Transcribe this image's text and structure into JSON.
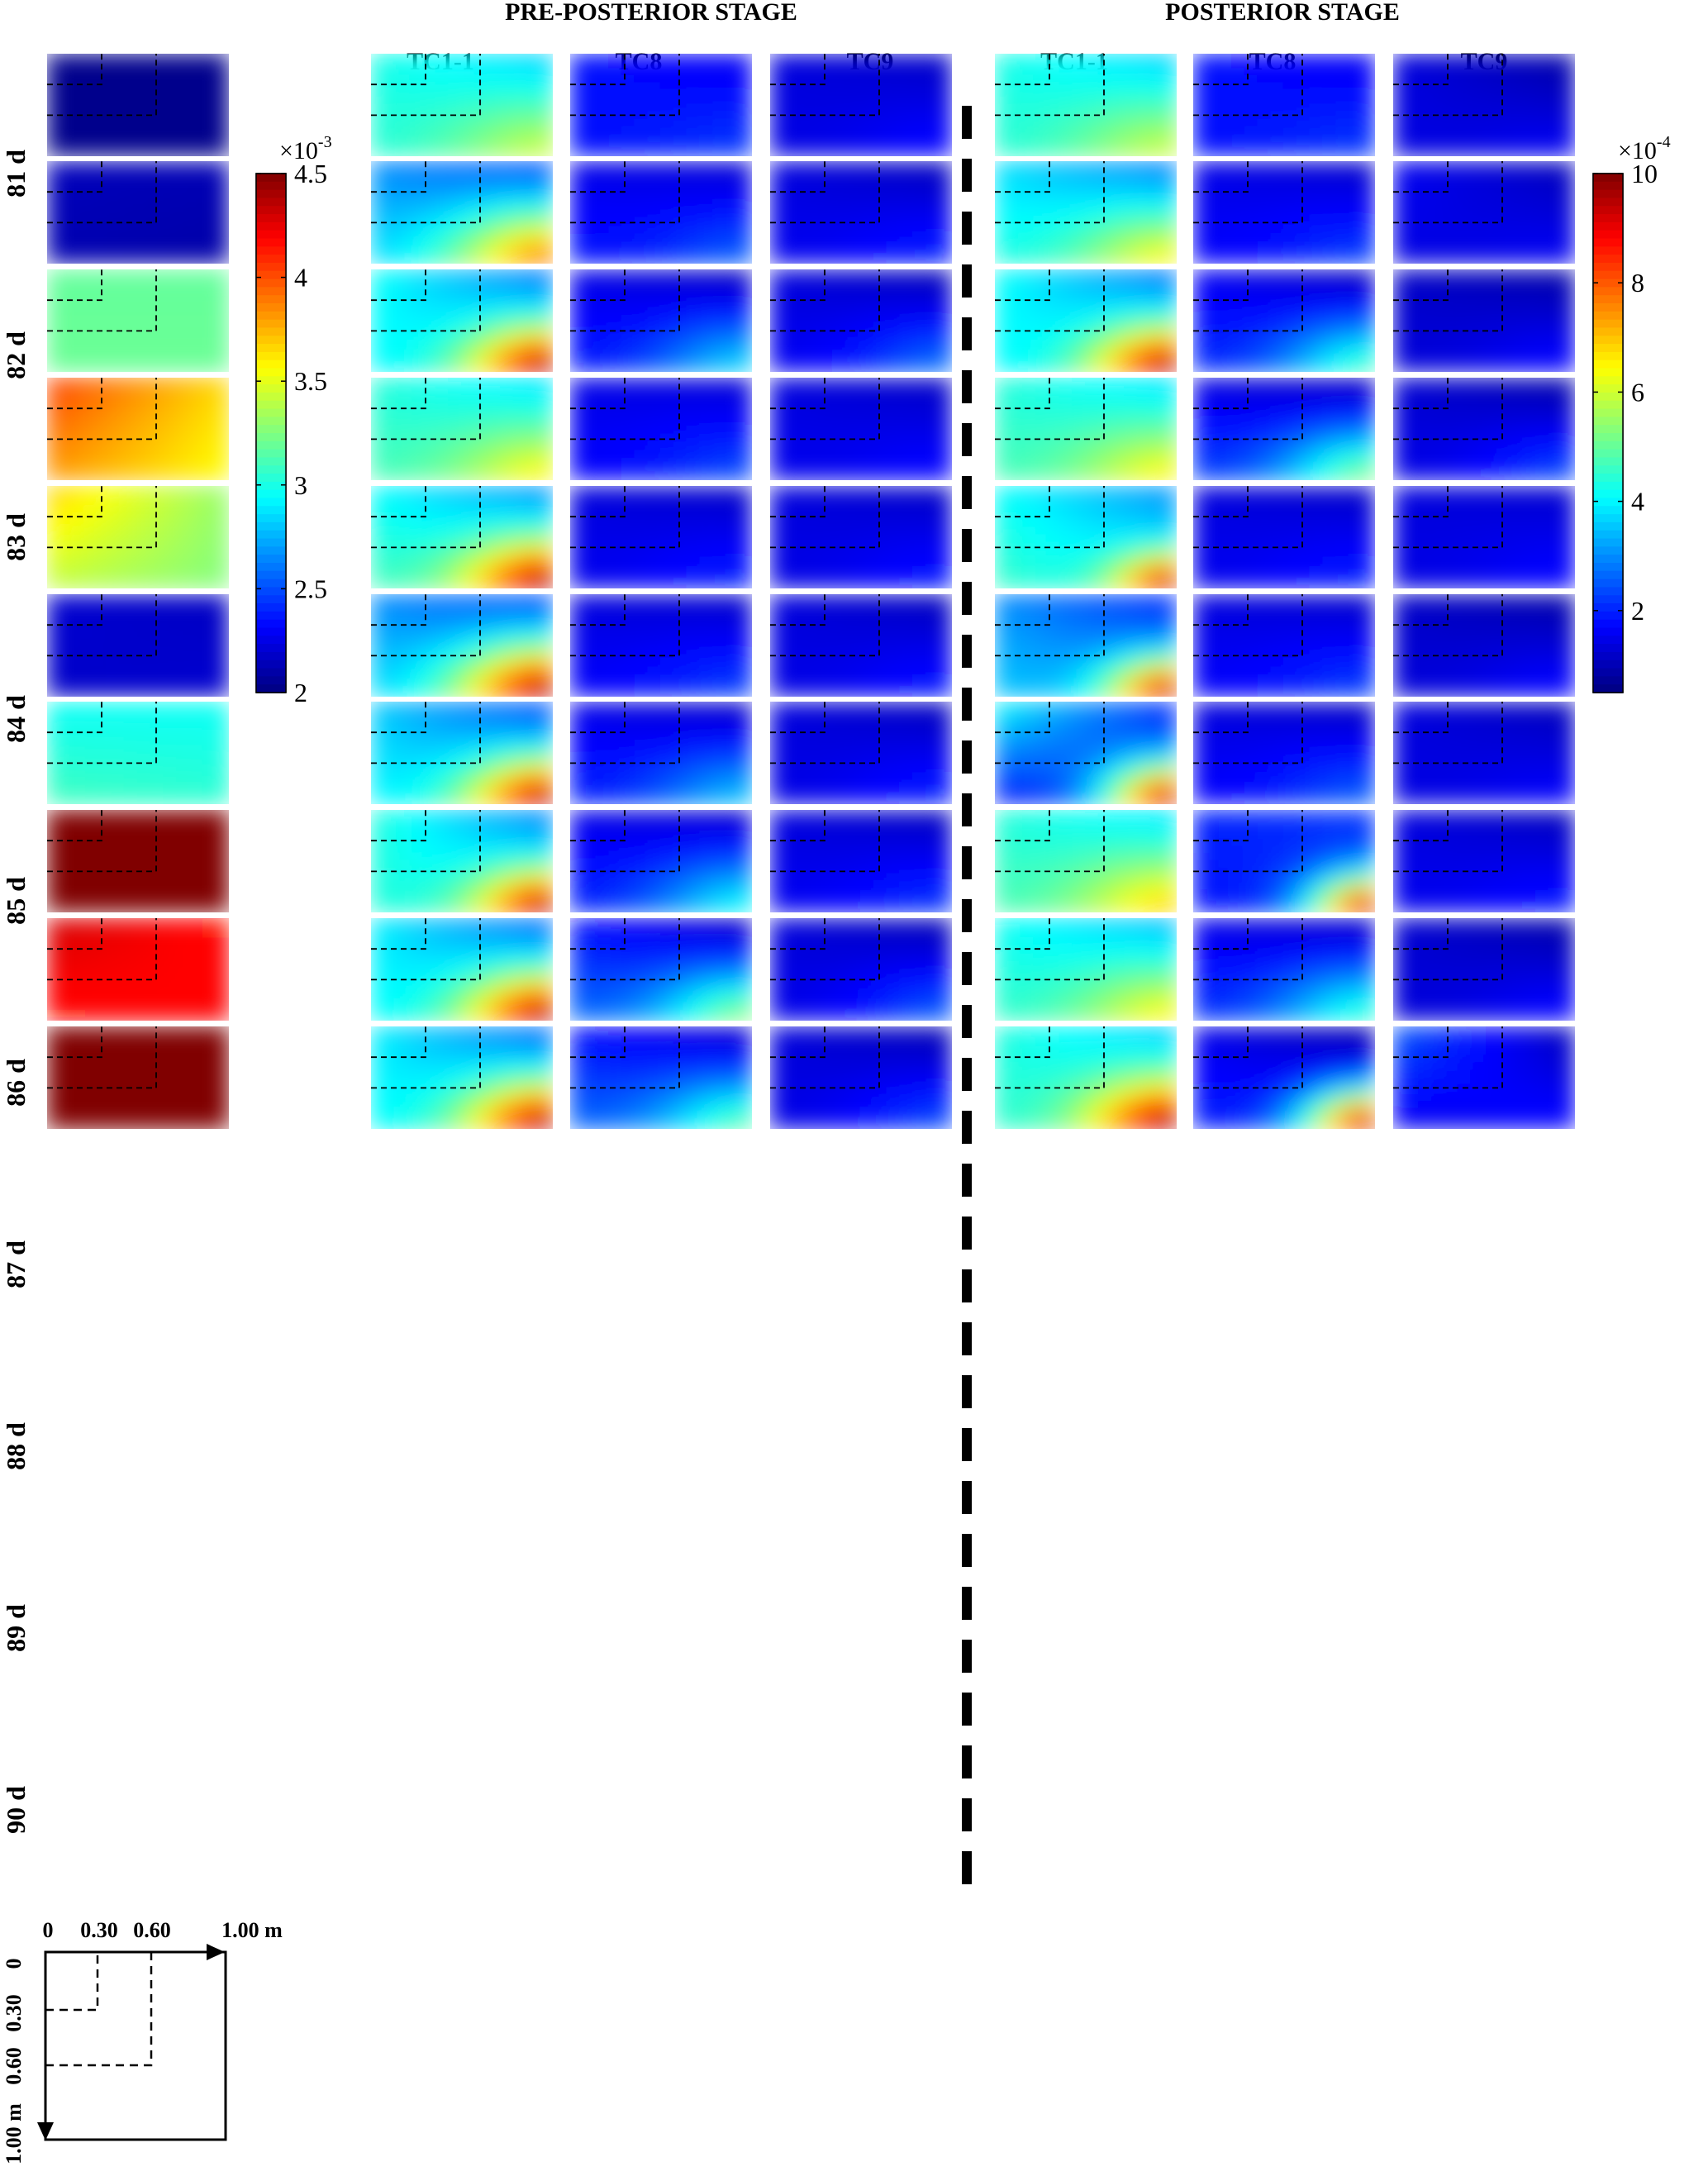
{
  "chart_data": {
    "type": "heatmap",
    "stage_titles": [
      "PRE-POSTERIOR STAGE",
      "POSTERIOR STAGE"
    ],
    "column_labels": [
      "TC1-1",
      "TC8",
      "TC9"
    ],
    "row_labels": [
      "81 d",
      "82 d",
      "83 d",
      "84 d",
      "85 d",
      "86 d",
      "87 d",
      "88 d",
      "89 d",
      "90 d"
    ],
    "colormap": "jet",
    "colorbars": [
      {
        "name": "left",
        "multiplier": "×10",
        "exponent": "-3",
        "range": [
          2.0,
          4.5
        ],
        "ticks": [
          2,
          2.5,
          3,
          3.5,
          4,
          4.5
        ],
        "tick_labels": [
          "2",
          "2.5",
          "3",
          "3.5",
          "4",
          "4.5"
        ]
      },
      {
        "name": "right",
        "multiplier": "×10",
        "exponent": "-4",
        "range": [
          0.5,
          10
        ],
        "ticks": [
          2,
          4,
          6,
          8,
          10
        ],
        "tick_labels": [
          "2",
          "4",
          "6",
          "8",
          "10"
        ]
      }
    ],
    "reference_maps": {
      "note_colorbar": "left",
      "corner_values": [
        [
          2.03,
          2.03,
          2.03,
          2.03
        ],
        [
          2.15,
          2.13,
          2.12,
          2.1
        ],
        [
          3.18,
          3.18,
          3.2,
          3.2
        ],
        [
          4.05,
          3.65,
          3.8,
          3.55
        ],
        [
          3.7,
          3.3,
          3.4,
          3.25
        ],
        [
          2.2,
          2.16,
          2.18,
          2.2
        ],
        [
          2.95,
          2.95,
          3.1,
          3.05
        ],
        [
          4.7,
          4.7,
          4.7,
          4.7
        ],
        [
          4.3,
          4.15,
          4.15,
          4.2
        ],
        [
          4.7,
          4.7,
          4.7,
          4.7
        ]
      ]
    },
    "field_maps": {
      "note_colorbar": "right",
      "pre_posterior": {
        "TC1-1": [
          {
            "tl": 4.3,
            "tr": 3.4,
            "bl": 4.3,
            "peak": 6.0,
            "r": 1.4
          },
          {
            "tl": 3.0,
            "tr": 2.0,
            "bl": 3.6,
            "peak": 8.0,
            "r": 1.3
          },
          {
            "tl": 4.2,
            "tr": 2.6,
            "bl": 4.0,
            "peak": 10.0,
            "r": 1.05
          },
          {
            "tl": 4.4,
            "tr": 3.6,
            "bl": 4.6,
            "peak": 6.6,
            "r": 1.3
          },
          {
            "tl": 4.1,
            "tr": 2.8,
            "bl": 4.6,
            "peak": 10.0,
            "r": 1.1
          },
          {
            "tl": 3.0,
            "tr": 2.0,
            "bl": 3.6,
            "peak": 10.0,
            "r": 1.2
          },
          {
            "tl": 3.6,
            "tr": 2.2,
            "bl": 4.0,
            "peak": 10.0,
            "r": 1.05
          },
          {
            "tl": 4.4,
            "tr": 2.8,
            "bl": 4.4,
            "peak": 10.0,
            "r": 0.95
          },
          {
            "tl": 4.0,
            "tr": 2.4,
            "bl": 4.0,
            "peak": 10.0,
            "r": 1.1
          },
          {
            "tl": 4.0,
            "tr": 2.4,
            "bl": 4.0,
            "peak": 10.0,
            "r": 1.1
          }
        ],
        "TC8": [
          {
            "tl": 1.8,
            "tr": 1.5,
            "bl": 1.8,
            "peak": 2.2,
            "r": 1.4
          },
          {
            "tl": 1.5,
            "tr": 1.2,
            "bl": 1.8,
            "peak": 2.6,
            "r": 1.3
          },
          {
            "tl": 1.5,
            "tr": 0.9,
            "bl": 1.8,
            "peak": 3.8,
            "r": 1.3
          },
          {
            "tl": 1.5,
            "tr": 1.2,
            "bl": 1.6,
            "peak": 2.4,
            "r": 1.4
          },
          {
            "tl": 1.4,
            "tr": 1.1,
            "bl": 1.5,
            "peak": 2.0,
            "r": 1.4
          },
          {
            "tl": 1.4,
            "tr": 1.1,
            "bl": 1.6,
            "peak": 2.3,
            "r": 1.4
          },
          {
            "tl": 1.5,
            "tr": 1.0,
            "bl": 1.9,
            "peak": 3.6,
            "r": 1.3
          },
          {
            "tl": 1.5,
            "tr": 1.0,
            "bl": 1.9,
            "peak": 4.2,
            "r": 1.3
          },
          {
            "tl": 1.8,
            "tr": 0.9,
            "bl": 2.6,
            "peak": 5.5,
            "r": 1.2
          },
          {
            "tl": 1.8,
            "tr": 1.0,
            "bl": 2.6,
            "peak": 5.0,
            "r": 1.2
          }
        ],
        "TC9": [
          {
            "tl": 1.4,
            "tr": 1.1,
            "bl": 1.4,
            "peak": 1.8,
            "r": 1.4
          },
          {
            "tl": 1.4,
            "tr": 1.0,
            "bl": 1.5,
            "peak": 2.0,
            "r": 1.4
          },
          {
            "tl": 1.4,
            "tr": 0.9,
            "bl": 1.5,
            "peak": 2.8,
            "r": 1.3
          },
          {
            "tl": 1.4,
            "tr": 1.1,
            "bl": 1.5,
            "peak": 1.8,
            "r": 1.4
          },
          {
            "tl": 1.4,
            "tr": 1.1,
            "bl": 1.4,
            "peak": 1.9,
            "r": 1.4
          },
          {
            "tl": 1.4,
            "tr": 1.0,
            "bl": 1.4,
            "peak": 1.9,
            "r": 1.4
          },
          {
            "tl": 1.4,
            "tr": 1.0,
            "bl": 1.4,
            "peak": 2.0,
            "r": 1.4
          },
          {
            "tl": 1.4,
            "tr": 1.0,
            "bl": 1.5,
            "peak": 2.2,
            "r": 1.4
          },
          {
            "tl": 1.4,
            "tr": 0.9,
            "bl": 1.4,
            "peak": 2.6,
            "r": 1.3
          },
          {
            "tl": 1.4,
            "tr": 0.9,
            "bl": 1.4,
            "peak": 2.4,
            "r": 1.3
          }
        ]
      },
      "posterior": {
        "TC1-1": [
          {
            "tl": 4.3,
            "tr": 3.4,
            "bl": 4.3,
            "peak": 6.0,
            "r": 1.4
          },
          {
            "tl": 3.8,
            "tr": 2.6,
            "bl": 4.2,
            "peak": 6.6,
            "r": 1.3
          },
          {
            "tl": 4.2,
            "tr": 2.6,
            "bl": 4.0,
            "peak": 10.0,
            "r": 1.05
          },
          {
            "tl": 4.4,
            "tr": 3.6,
            "bl": 4.6,
            "peak": 6.6,
            "r": 1.3
          },
          {
            "tl": 4.1,
            "tr": 3.0,
            "bl": 4.6,
            "peak": 10.0,
            "r": 0.75
          },
          {
            "tl": 3.0,
            "tr": 2.0,
            "bl": 3.6,
            "peak": 10.0,
            "r": 0.85
          },
          {
            "tl": 4.2,
            "tr": 2.0,
            "bl": 1.8,
            "peak": 10.0,
            "r": 0.9
          },
          {
            "tl": 4.4,
            "tr": 3.6,
            "bl": 4.6,
            "peak": 7.0,
            "r": 1.3
          },
          {
            "tl": 4.2,
            "tr": 3.2,
            "bl": 4.4,
            "peak": 6.6,
            "r": 1.3
          },
          {
            "tl": 4.4,
            "tr": 3.4,
            "bl": 4.4,
            "peak": 10.0,
            "r": 1.1
          }
        ],
        "TC8": [
          {
            "tl": 1.8,
            "tr": 1.5,
            "bl": 1.8,
            "peak": 2.2,
            "r": 1.4
          },
          {
            "tl": 1.5,
            "tr": 1.1,
            "bl": 1.6,
            "peak": 2.3,
            "r": 1.4
          },
          {
            "tl": 1.6,
            "tr": 0.9,
            "bl": 2.0,
            "peak": 4.8,
            "r": 1.2
          },
          {
            "tl": 1.4,
            "tr": 0.9,
            "bl": 2.2,
            "peak": 5.4,
            "r": 1.2
          },
          {
            "tl": 1.4,
            "tr": 1.1,
            "bl": 1.5,
            "peak": 2.0,
            "r": 1.4
          },
          {
            "tl": 1.4,
            "tr": 1.1,
            "bl": 1.6,
            "peak": 2.3,
            "r": 1.4
          },
          {
            "tl": 1.4,
            "tr": 1.0,
            "bl": 1.6,
            "peak": 2.6,
            "r": 1.4
          },
          {
            "tl": 2.0,
            "tr": 2.2,
            "bl": 1.8,
            "peak": 10.0,
            "r": 0.8
          },
          {
            "tl": 1.5,
            "tr": 0.9,
            "bl": 2.0,
            "peak": 4.6,
            "r": 1.3
          },
          {
            "tl": 1.5,
            "tr": 0.9,
            "bl": 2.0,
            "peak": 10.0,
            "r": 0.9
          }
        ],
        "TC9": [
          {
            "tl": 1.4,
            "tr": 0.8,
            "bl": 1.4,
            "peak": 1.6,
            "r": 1.4
          },
          {
            "tl": 1.6,
            "tr": 1.0,
            "bl": 1.4,
            "peak": 1.6,
            "r": 1.4
          },
          {
            "tl": 1.2,
            "tr": 0.8,
            "bl": 1.3,
            "peak": 1.8,
            "r": 1.4
          },
          {
            "tl": 1.3,
            "tr": 0.8,
            "bl": 1.4,
            "peak": 2.4,
            "r": 1.3
          },
          {
            "tl": 1.4,
            "tr": 1.2,
            "bl": 1.4,
            "peak": 1.8,
            "r": 1.4
          },
          {
            "tl": 1.2,
            "tr": 0.8,
            "bl": 1.3,
            "peak": 1.8,
            "r": 1.4
          },
          {
            "tl": 1.4,
            "tr": 1.0,
            "bl": 1.4,
            "peak": 1.7,
            "r": 1.4
          },
          {
            "tl": 1.4,
            "tr": 1.0,
            "bl": 1.5,
            "peak": 1.9,
            "r": 1.4
          },
          {
            "tl": 1.3,
            "tr": 0.8,
            "bl": 1.3,
            "peak": 1.8,
            "r": 1.4
          },
          {
            "tl": 2.6,
            "tr": 1.0,
            "bl": 1.5,
            "peak": 1.8,
            "r": 1.3
          }
        ]
      }
    },
    "dashed_zones_m": [
      0.3,
      0.6
    ],
    "domain_m": 1.0,
    "schematic": {
      "x_tick_labels": [
        "0",
        "0.30",
        "0.60",
        "1.00 m"
      ],
      "y_tick_labels": [
        "0",
        "0.30",
        "0.60",
        "1.00 m"
      ]
    }
  }
}
